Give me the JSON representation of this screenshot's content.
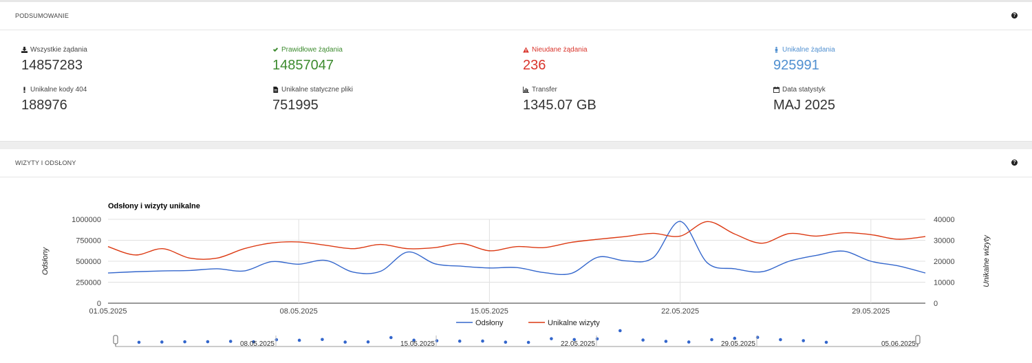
{
  "summary": {
    "title": "PODSUMOWANIE",
    "help": "?",
    "stats": [
      {
        "label": "Wszystkie żądania",
        "value": "14857283",
        "icon": "download-icon"
      },
      {
        "label": "Prawidłowe żądania",
        "value": "14857047",
        "icon": "check-icon"
      },
      {
        "label": "Nieudane żądania",
        "value": "236",
        "icon": "warning-icon"
      },
      {
        "label": "Unikalne żądania",
        "value": "925991",
        "icon": "user-icon"
      },
      {
        "label": "Unikalne kody 404",
        "value": "188976",
        "icon": "exclamation-icon"
      },
      {
        "label": "Unikalne statyczne pliki",
        "value": "751995",
        "icon": "file-icon"
      },
      {
        "label": "Transfer",
        "value": "1345.07 GB",
        "icon": "bar-chart-icon"
      },
      {
        "label": "Data statystyk",
        "value": "MAJ 2025",
        "icon": "calendar-icon"
      }
    ],
    "colors": {
      "green": "#3d8b2f",
      "red": "#d9342b",
      "blue": "#4f8fd0"
    }
  },
  "visits": {
    "title": "WIZYTY I ODSŁONY",
    "help": "?"
  },
  "chart_data": {
    "type": "line",
    "title": "Odsłony i wizyty unikalne",
    "ylabel_left": "Odsłony",
    "ylabel_right": "Unikalne wizyty",
    "ylim_left": [
      0,
      1000000
    ],
    "ylim_right": [
      0,
      40000
    ],
    "yticks_left": [
      "0",
      "250000",
      "500000",
      "750000",
      "1000000"
    ],
    "yticks_right": [
      "0",
      "10000",
      "20000",
      "30000",
      "40000"
    ],
    "x_tick_labels": [
      "01.05.2025",
      "08.05.2025",
      "15.05.2025",
      "22.05.2025",
      "29.05.2025"
    ],
    "x": [
      "01.05",
      "02.05",
      "03.05",
      "04.05",
      "05.05",
      "06.05",
      "07.05",
      "08.05",
      "09.05",
      "10.05",
      "11.05",
      "12.05",
      "13.05",
      "14.05",
      "15.05",
      "16.05",
      "17.05",
      "18.05",
      "19.05",
      "20.05",
      "21.05",
      "22.05",
      "23.05",
      "24.05",
      "25.05",
      "26.05",
      "27.05",
      "28.05",
      "29.05",
      "30.05",
      "31.05"
    ],
    "legend_position": "bottom",
    "grid": true,
    "series": [
      {
        "name": "Odsłony",
        "axis": "left",
        "color": "#3366cc",
        "values": [
          360000,
          375000,
          385000,
          390000,
          410000,
          385000,
          495000,
          465000,
          510000,
          370000,
          380000,
          610000,
          470000,
          440000,
          420000,
          425000,
          365000,
          355000,
          550000,
          505000,
          540000,
          975000,
          480000,
          410000,
          375000,
          500000,
          570000,
          620000,
          500000,
          445000,
          360000
        ]
      },
      {
        "name": "Unikalne wizyty",
        "axis": "right",
        "color": "#dc3912",
        "values": [
          27000,
          23000,
          26000,
          21500,
          21500,
          26000,
          28700,
          29200,
          27600,
          26000,
          28000,
          26000,
          26500,
          28400,
          25000,
          27000,
          26500,
          29000,
          30500,
          31800,
          33300,
          32000,
          38900,
          33000,
          28600,
          33200,
          32000,
          33600,
          32700,
          30500,
          31800
        ]
      }
    ],
    "range_selector": {
      "labels": [
        "08.05.2025",
        "15.05.2025",
        "22.05.2025",
        "29.05.2025",
        "05.06.2025"
      ]
    }
  }
}
